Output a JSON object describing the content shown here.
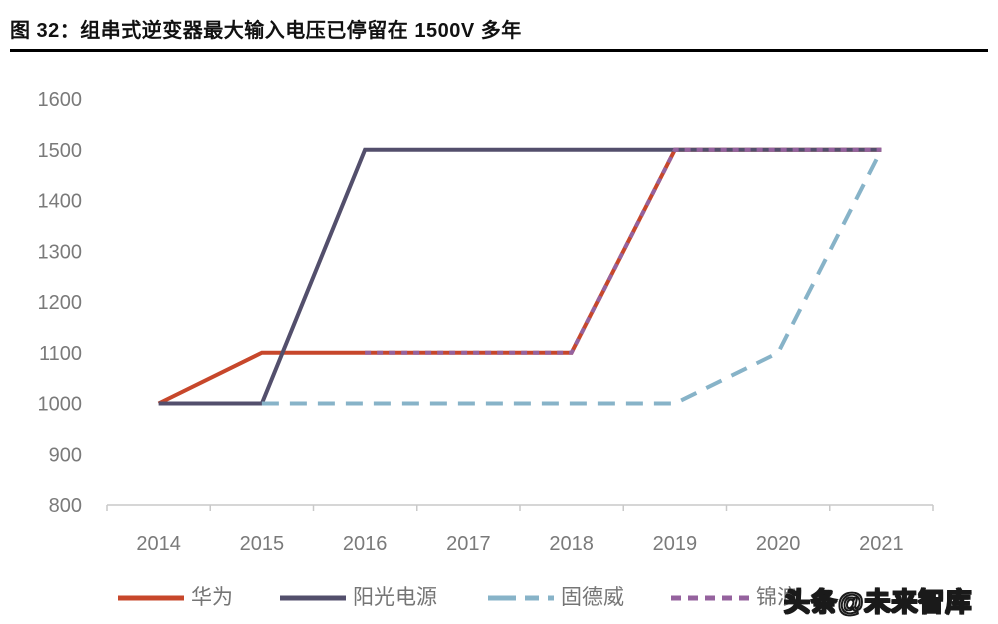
{
  "header": {
    "title": "图 32：组串式逆变器最大输入电压已停留在 1500V 多年"
  },
  "watermark": {
    "text": "头条@未来智库"
  },
  "chart_data": {
    "type": "line",
    "title": "图 32：组串式逆变器最大输入电压已停留在 1500V 多年",
    "x": [
      "2014",
      "2015",
      "2016",
      "2017",
      "2018",
      "2019",
      "2020",
      "2021"
    ],
    "ylim": [
      800,
      1600
    ],
    "ytick_step": 100,
    "ylabel": "",
    "xlabel": "",
    "grid": false,
    "legend_position": "bottom",
    "axis_color": "#C9C9C9",
    "label_color": "#7A7A7A",
    "series": [
      {
        "name": "华为",
        "color": "#C7472B",
        "style": "solid",
        "values": [
          1000,
          1100,
          1100,
          1100,
          1100,
          1500,
          1500,
          1500
        ]
      },
      {
        "name": "阳光电源",
        "color": "#534F6C",
        "style": "solid",
        "values": [
          1000,
          1000,
          1500,
          1500,
          1500,
          1500,
          1500,
          1500
        ]
      },
      {
        "name": "固德威",
        "color": "#87B3C8",
        "style": "dashed",
        "values": [
          null,
          1000,
          1000,
          1000,
          1000,
          1000,
          1100,
          1500
        ]
      },
      {
        "name": "锦浪",
        "color": "#95629E",
        "style": "dotted",
        "values": [
          null,
          null,
          1100,
          1100,
          1100,
          1500,
          1500,
          1500
        ]
      }
    ]
  }
}
